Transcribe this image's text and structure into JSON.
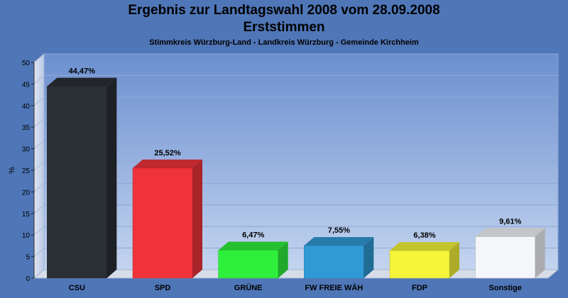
{
  "chart_data": {
    "type": "bar",
    "title": "Ergebnis zur Landtagswahl 2008 vom 28.09.2008",
    "subtitle_line": "Erststimmen",
    "subtitle": "Stimmkreis Würzburg-Land - Landkreis Würzburg - Gemeinde Kirchheim",
    "ylabel": "%",
    "xlabel": "",
    "ylim": [
      0,
      50
    ],
    "yticks": [
      0,
      5,
      10,
      15,
      20,
      25,
      30,
      35,
      40,
      45,
      50
    ],
    "grid": true,
    "categories": [
      "CSU",
      "SPD",
      "GRÜNE",
      "FW FREIE WÄH",
      "FDP",
      "Sonstige"
    ],
    "values": [
      44.47,
      25.52,
      6.47,
      7.55,
      6.38,
      9.61
    ],
    "value_labels": [
      "44,47%",
      "25,52%",
      "6,47%",
      "7,55%",
      "6,38%",
      "9,61%"
    ],
    "colors": [
      "#2a2e35",
      "#f0333b",
      "#2ef03c",
      "#2f9ad5",
      "#f5f53a",
      "#f4f6fa"
    ]
  }
}
